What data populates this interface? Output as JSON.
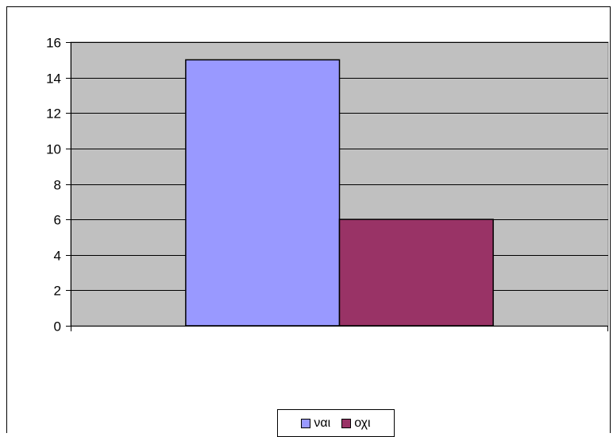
{
  "chart_data": {
    "type": "bar",
    "categories": [
      ""
    ],
    "series": [
      {
        "name": "ναι",
        "values": [
          15
        ],
        "color": "#9999ff"
      },
      {
        "name": "οχι",
        "values": [
          6
        ],
        "color": "#993366"
      }
    ],
    "title": "",
    "xlabel": "",
    "ylabel": "",
    "ylim": [
      0,
      16
    ],
    "yticks": [
      0,
      2,
      4,
      6,
      8,
      10,
      12,
      14,
      16
    ],
    "plot_background": "#c0c0c0",
    "grid": true,
    "legend": "bottom"
  }
}
